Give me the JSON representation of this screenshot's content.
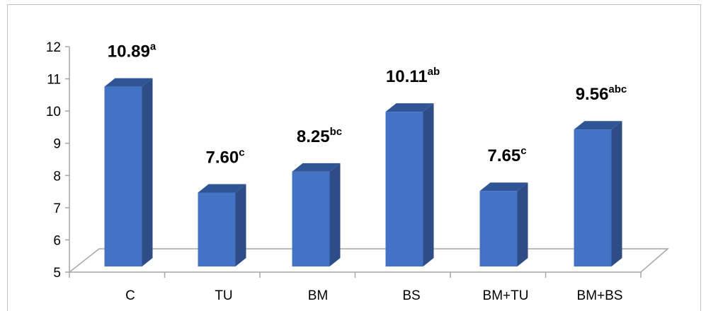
{
  "chart_data": {
    "type": "bar",
    "style": "3d-column",
    "categories": [
      "C",
      "TU",
      "BM",
      "BS",
      "BM+TU",
      "BM+BS"
    ],
    "values": [
      10.89,
      7.6,
      8.25,
      10.11,
      7.65,
      9.56
    ],
    "data_labels": [
      {
        "value": "10.89",
        "superscript": "a"
      },
      {
        "value": "7.60",
        "superscript": "c"
      },
      {
        "value": "8.25",
        "superscript": "bc"
      },
      {
        "value": "10.11",
        "superscript": "ab"
      },
      {
        "value": "7.65",
        "superscript": "c"
      },
      {
        "value": "9.56",
        "superscript": "abc"
      }
    ],
    "title": "",
    "xlabel": "",
    "ylabel": "",
    "ylim": [
      5,
      12
    ],
    "yticks": [
      "5",
      "6",
      "7",
      "8",
      "9",
      "10",
      "11",
      "12"
    ],
    "grid": false,
    "legend": "none",
    "colors": {
      "bar_front": "#4472C4",
      "bar_side": "#2E4D87",
      "bar_top": "#2F5597",
      "floor": "#ffffff",
      "floor_edge": "#a6a6a6",
      "axis": "#a6a6a6"
    }
  }
}
